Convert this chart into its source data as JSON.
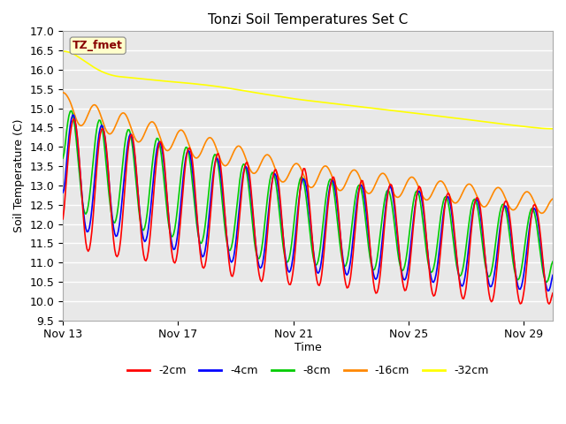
{
  "title": "Tonzi Soil Temperatures Set C",
  "ylabel": "Soil Temperature (C)",
  "xlabel": "Time",
  "ylim": [
    9.5,
    17.0
  ],
  "yticks": [
    9.5,
    10.0,
    10.5,
    11.0,
    11.5,
    12.0,
    12.5,
    13.0,
    13.5,
    14.0,
    14.5,
    15.0,
    15.5,
    16.0,
    16.5,
    17.0
  ],
  "xtick_labels": [
    "Nov 13",
    "Nov 17",
    "Nov 21",
    "Nov 25",
    "Nov 29"
  ],
  "xtick_positions": [
    0,
    4,
    8,
    12,
    16
  ],
  "legend_entries": [
    "-2cm",
    "-4cm",
    "-8cm",
    "-16cm",
    "-32cm"
  ],
  "legend_colors": [
    "#ff0000",
    "#0000ff",
    "#00cc00",
    "#ff8800",
    "#ffff00"
  ],
  "annotation_text": "TZ_fmet",
  "annotation_color": "#880000",
  "annotation_bg": "#ffffcc",
  "plot_bg": "#e8e8e8",
  "n_points": 408,
  "total_days": 17
}
